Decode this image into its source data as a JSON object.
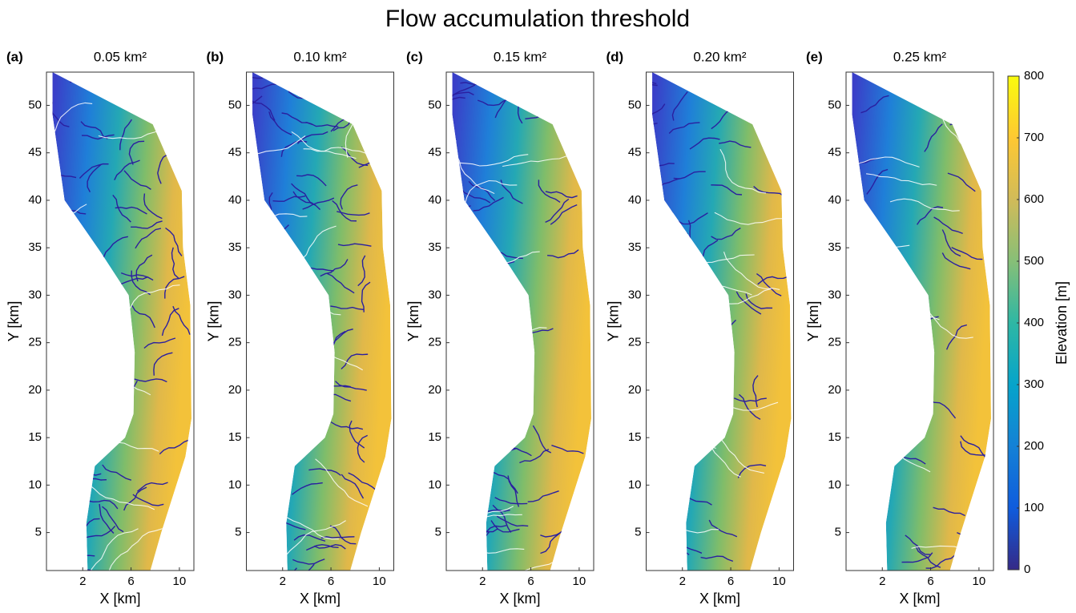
{
  "chart_data": {
    "type": "map",
    "title": "Flow accumulation threshold",
    "panels": [
      {
        "label": "(a)",
        "title": "0.05 km²"
      },
      {
        "label": "(b)",
        "title": "0.10 km²"
      },
      {
        "label": "(c)",
        "title": "0.15 km²"
      },
      {
        "label": "(d)",
        "title": "0.20 km²"
      },
      {
        "label": "(e)",
        "title": "0.25 km²"
      }
    ],
    "xlabel": "X [km]",
    "ylabel": "Y [km]",
    "xlim": [
      -1,
      11.2
    ],
    "ylim": [
      1,
      53.5
    ],
    "xticks": [
      2,
      6,
      10
    ],
    "yticks": [
      5,
      10,
      15,
      20,
      25,
      30,
      35,
      40,
      45,
      50
    ],
    "colorbar": {
      "label": "Elevation [m]",
      "lim": [
        0,
        800
      ],
      "ticks": [
        0,
        100,
        200,
        300,
        400,
        500,
        600,
        700,
        800
      ]
    }
  }
}
